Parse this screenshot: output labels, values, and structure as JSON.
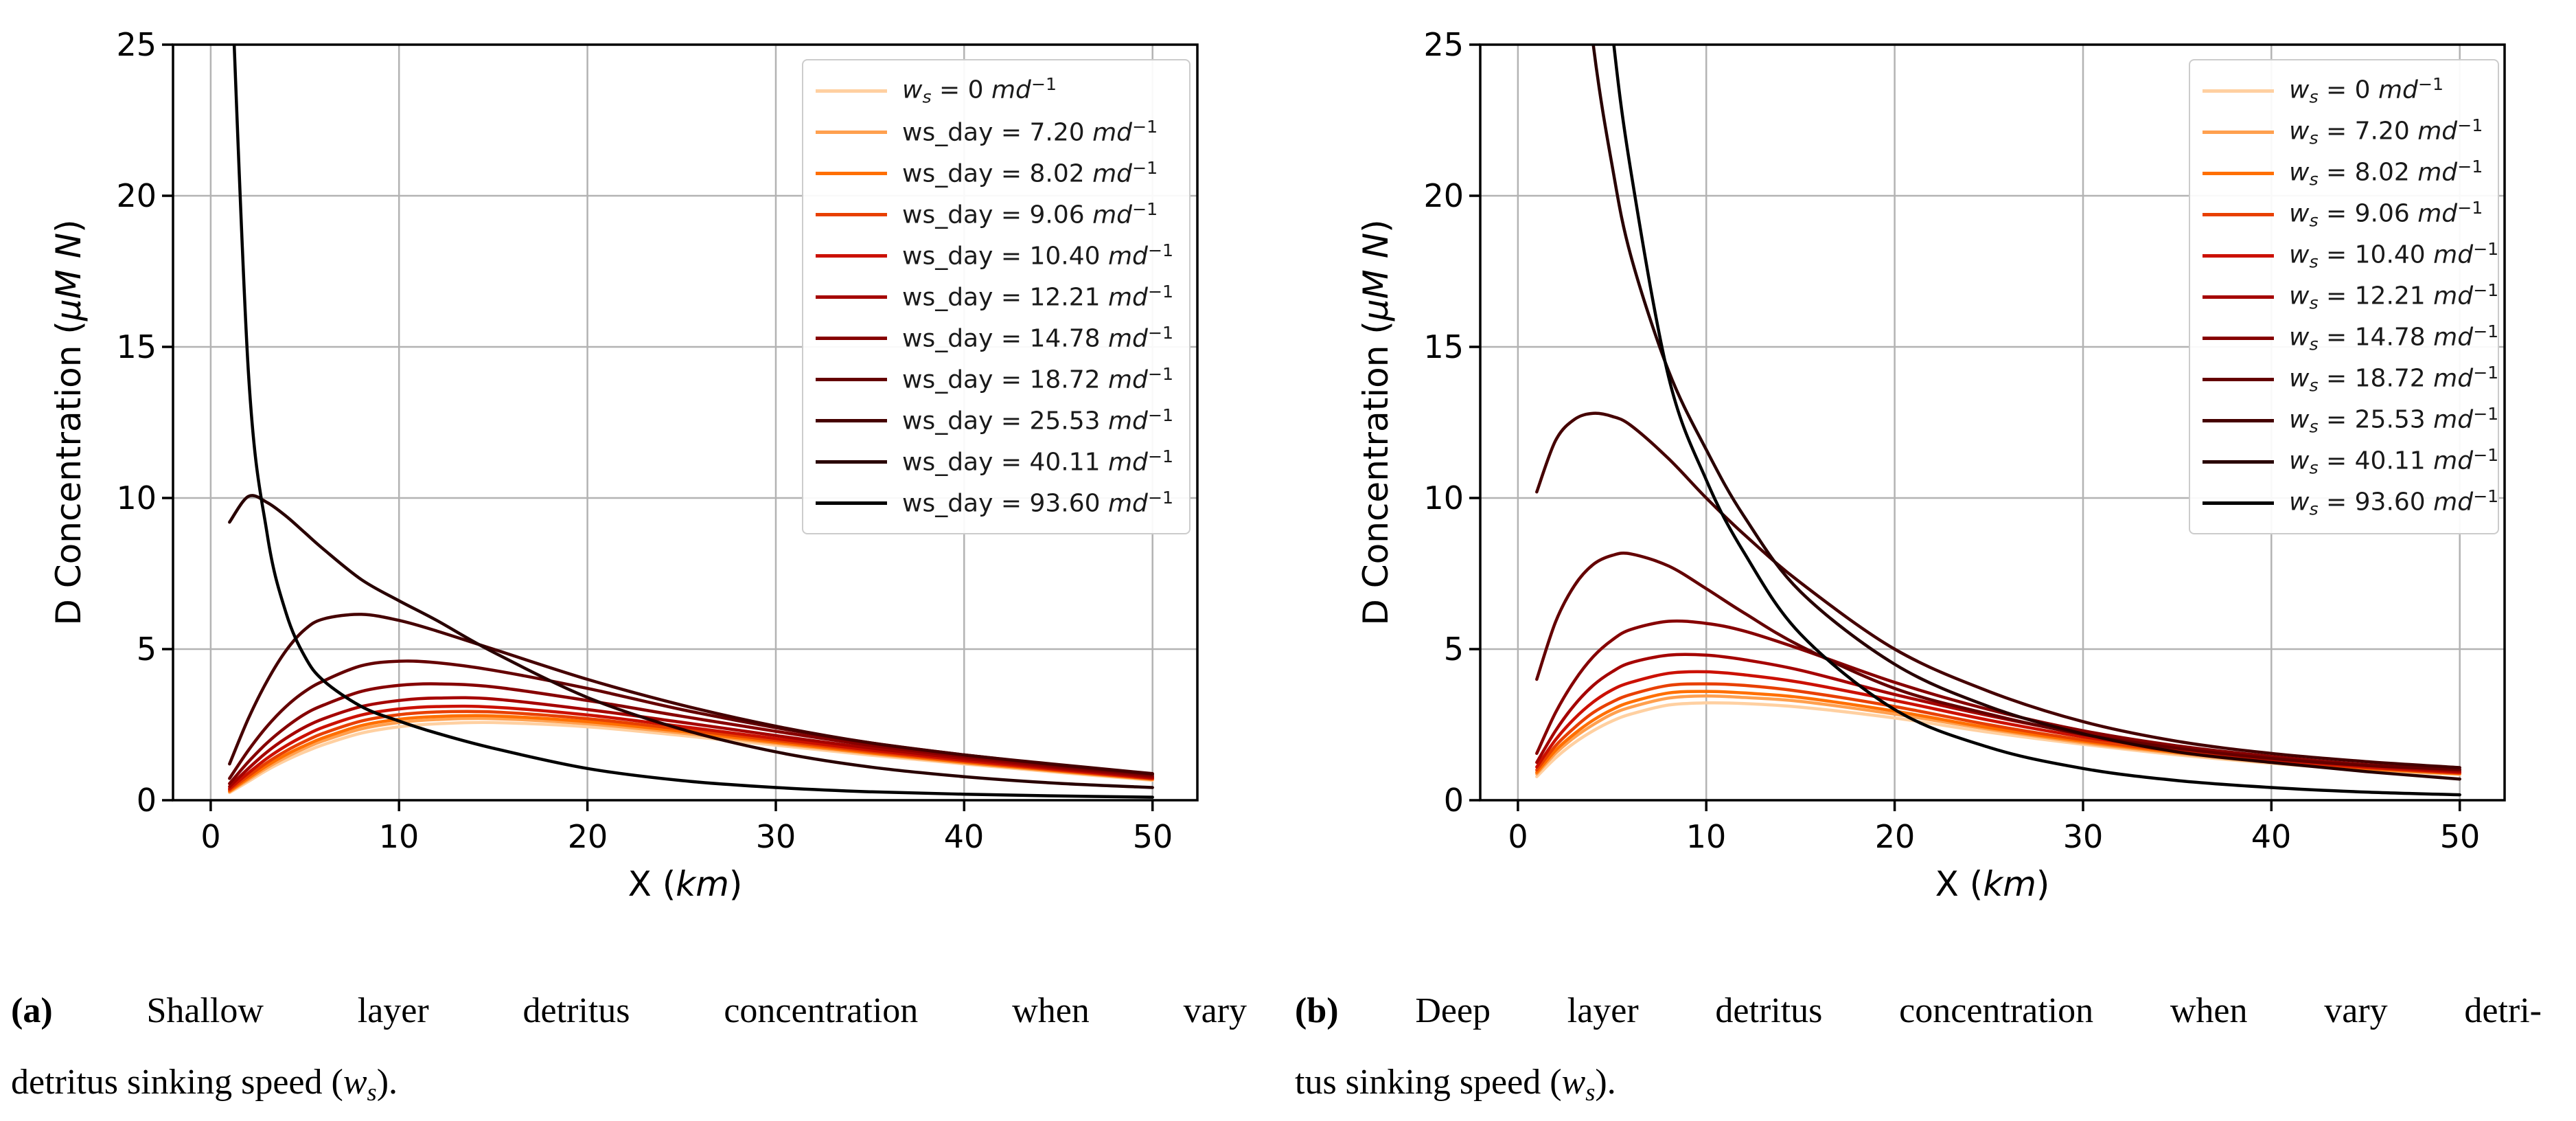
{
  "legend_tokens": {
    "math_var": "w",
    "math_sub": "s",
    "plain_var": "ws_day",
    "eq": "=",
    "unit_base": "md",
    "unit_exp": "−1"
  },
  "caption_math": {
    "open": " (",
    "var": "w",
    "sub": "s",
    "close": ")."
  },
  "captions": [
    {
      "label": "(a)",
      "lines": [
        {
          "text": "Shallow layer detritus concentration when vary",
          "justify": true,
          "math_suffix": false
        },
        {
          "text": "detritus sinking speed",
          "justify": false,
          "math_suffix": true
        }
      ]
    },
    {
      "label": "(b)",
      "lines": [
        {
          "text": "Deep layer detritus concentration when vary detri-",
          "justify": true,
          "math_suffix": false
        },
        {
          "text": "tus sinking speed",
          "justify": false,
          "math_suffix": true
        }
      ]
    }
  ],
  "chart_data": [
    {
      "type": "line",
      "panel": "a",
      "xlabel_parts": {
        "pre": "X (",
        "it": "km",
        "post": ")"
      },
      "ylabel_parts": {
        "pre": "D Concentration (",
        "it": "μM N",
        "post": ")"
      },
      "xlim": [
        -2,
        52.38
      ],
      "ylim": [
        0,
        25
      ],
      "xticks": [
        0,
        10,
        20,
        30,
        40,
        50
      ],
      "yticks": [
        0,
        5,
        10,
        15,
        20,
        25
      ],
      "xtick_labels": [
        "0",
        "10",
        "20",
        "30",
        "40",
        "50"
      ],
      "ytick_labels": [
        "0",
        "5",
        "10",
        "15",
        "20",
        "25"
      ],
      "grid": true,
      "legend_position": "upper right",
      "x": [
        1,
        2,
        3,
        4,
        5,
        6,
        8,
        10,
        12,
        15,
        20,
        25,
        30,
        35,
        40,
        45,
        50
      ],
      "series": [
        {
          "label": "w_s = 0 md^-1",
          "form": "math",
          "value": "0",
          "color": "#ffd0a1",
          "values": [
            0.25,
            0.62,
            1.0,
            1.32,
            1.6,
            1.84,
            2.22,
            2.43,
            2.53,
            2.57,
            2.43,
            2.14,
            1.82,
            1.49,
            1.2,
            0.92,
            0.66
          ]
        },
        {
          "label": "ws_day = 7.20 md^-1",
          "form": "plain",
          "value": "7.20",
          "color": "#ffa04f",
          "values": [
            0.28,
            0.68,
            1.08,
            1.42,
            1.72,
            1.97,
            2.36,
            2.57,
            2.67,
            2.7,
            2.53,
            2.22,
            1.88,
            1.54,
            1.23,
            0.95,
            0.68
          ]
        },
        {
          "label": "ws_day = 8.02 md^-1",
          "form": "plain",
          "value": "8.02",
          "color": "#ff6f00",
          "values": [
            0.3,
            0.73,
            1.15,
            1.51,
            1.81,
            2.07,
            2.47,
            2.68,
            2.77,
            2.79,
            2.6,
            2.28,
            1.92,
            1.57,
            1.26,
            0.97,
            0.7
          ]
        },
        {
          "label": "ws_day = 9.06 md^-1",
          "form": "plain",
          "value": "9.06",
          "color": "#e84000",
          "values": [
            0.34,
            0.8,
            1.25,
            1.63,
            1.95,
            2.22,
            2.62,
            2.83,
            2.92,
            2.92,
            2.7,
            2.35,
            1.98,
            1.61,
            1.29,
            0.99,
            0.71
          ]
        },
        {
          "label": "ws_day = 10.40 md^-1",
          "form": "plain",
          "value": "10.40",
          "color": "#cb1000",
          "values": [
            0.38,
            0.9,
            1.39,
            1.8,
            2.14,
            2.42,
            2.82,
            3.02,
            3.1,
            3.08,
            2.82,
            2.44,
            2.04,
            1.66,
            1.32,
            1.02,
            0.73
          ]
        },
        {
          "label": "ws_day = 12.21 md^-1",
          "form": "plain",
          "value": "12.21",
          "color": "#a50300",
          "values": [
            0.45,
            1.05,
            1.6,
            2.05,
            2.42,
            2.7,
            3.1,
            3.3,
            3.38,
            3.35,
            3.0,
            2.58,
            2.14,
            1.73,
            1.38,
            1.06,
            0.76
          ]
        },
        {
          "label": "ws_day = 14.78 md^-1",
          "form": "plain",
          "value": "14.78",
          "color": "#860000",
          "values": [
            0.55,
            1.27,
            1.9,
            2.42,
            2.85,
            3.15,
            3.6,
            3.8,
            3.85,
            3.75,
            3.3,
            2.78,
            2.28,
            1.82,
            1.44,
            1.1,
            0.8
          ]
        },
        {
          "label": "ws_day = 18.72 md^-1",
          "form": "plain",
          "value": "18.72",
          "color": "#640000",
          "values": [
            0.72,
            1.65,
            2.45,
            3.1,
            3.6,
            3.95,
            4.45,
            4.6,
            4.55,
            4.3,
            3.7,
            3.0,
            2.4,
            1.9,
            1.5,
            1.15,
            0.85
          ]
        },
        {
          "label": "ws_day = 25.53 md^-1",
          "form": "plain",
          "value": "25.53",
          "color": "#450000",
          "values": [
            1.2,
            2.7,
            3.95,
            4.95,
            5.65,
            6.0,
            6.15,
            5.95,
            5.6,
            5.0,
            4.0,
            3.15,
            2.45,
            1.9,
            1.5,
            1.18,
            0.88
          ]
        },
        {
          "label": "ws_day = 40.11 md^-1",
          "form": "plain",
          "value": "40.11",
          "color": "#280000",
          "values": [
            9.2,
            10.05,
            9.85,
            9.4,
            8.85,
            8.3,
            7.3,
            6.6,
            5.95,
            4.9,
            3.4,
            2.35,
            1.6,
            1.1,
            0.78,
            0.56,
            0.42
          ]
        },
        {
          "label": "ws_day = 93.60 md^-1",
          "form": "plain",
          "value": "93.60",
          "color": "#000000",
          "values": [
            29.0,
            14.2,
            8.8,
            6.2,
            4.75,
            3.95,
            3.1,
            2.62,
            2.22,
            1.72,
            1.05,
            0.65,
            0.42,
            0.28,
            0.2,
            0.14,
            0.1
          ]
        }
      ]
    },
    {
      "type": "line",
      "panel": "b",
      "xlabel_parts": {
        "pre": "X (",
        "it": "km",
        "post": ")"
      },
      "ylabel_parts": {
        "pre": "D Concentration (",
        "it": "μM N",
        "post": ")"
      },
      "xlim": [
        -2,
        52.38
      ],
      "ylim": [
        0,
        25
      ],
      "xticks": [
        0,
        10,
        20,
        30,
        40,
        50
      ],
      "yticks": [
        0,
        5,
        10,
        15,
        20,
        25
      ],
      "xtick_labels": [
        "0",
        "10",
        "20",
        "30",
        "40",
        "50"
      ],
      "ytick_labels": [
        "0",
        "5",
        "10",
        "15",
        "20",
        "25"
      ],
      "grid": true,
      "legend_position": "upper right",
      "x": [
        1,
        2,
        3,
        4,
        5,
        6,
        8,
        10,
        12,
        15,
        20,
        25,
        30,
        35,
        40,
        45,
        50
      ],
      "series": [
        {
          "label": "w_s = 0 md^-1",
          "form": "math",
          "value": "0",
          "color": "#ffd0a1",
          "values": [
            0.78,
            1.4,
            1.9,
            2.3,
            2.62,
            2.85,
            3.15,
            3.22,
            3.2,
            3.08,
            2.72,
            2.25,
            1.85,
            1.5,
            1.22,
            1.0,
            0.85
          ]
        },
        {
          "label": "w_s = 7.20 md^-1",
          "form": "math",
          "value": "7.20",
          "color": "#ffa04f",
          "values": [
            0.87,
            1.55,
            2.08,
            2.5,
            2.85,
            3.08,
            3.38,
            3.45,
            3.4,
            3.27,
            2.85,
            2.35,
            1.9,
            1.55,
            1.25,
            1.03,
            0.87
          ]
        },
        {
          "label": "w_s = 8.02 md^-1",
          "form": "math",
          "value": "8.02",
          "color": "#ff6f00",
          "values": [
            0.92,
            1.65,
            2.2,
            2.65,
            3.0,
            3.25,
            3.55,
            3.6,
            3.55,
            3.4,
            2.95,
            2.4,
            1.95,
            1.58,
            1.27,
            1.05,
            0.88
          ]
        },
        {
          "label": "w_s = 9.06 md^-1",
          "form": "math",
          "value": "9.06",
          "color": "#e84000",
          "values": [
            1.0,
            1.8,
            2.4,
            2.9,
            3.25,
            3.5,
            3.8,
            3.85,
            3.8,
            3.6,
            3.1,
            2.5,
            2.0,
            1.62,
            1.3,
            1.07,
            0.9
          ]
        },
        {
          "label": "w_s = 10.40 md^-1",
          "form": "math",
          "value": "10.40",
          "color": "#cb1000",
          "values": [
            1.1,
            2.0,
            2.7,
            3.25,
            3.65,
            3.9,
            4.2,
            4.25,
            4.15,
            3.9,
            3.3,
            2.65,
            2.1,
            1.7,
            1.35,
            1.1,
            0.92
          ]
        },
        {
          "label": "w_s = 12.21 md^-1",
          "form": "math",
          "value": "12.21",
          "color": "#a50300",
          "values": [
            1.25,
            2.3,
            3.15,
            3.8,
            4.25,
            4.55,
            4.8,
            4.8,
            4.65,
            4.3,
            3.5,
            2.8,
            2.2,
            1.75,
            1.4,
            1.15,
            0.95
          ]
        },
        {
          "label": "w_s = 14.78 md^-1",
          "form": "math",
          "value": "14.78",
          "color": "#860000",
          "values": [
            1.55,
            2.9,
            3.95,
            4.75,
            5.3,
            5.65,
            5.92,
            5.85,
            5.6,
            5.0,
            3.9,
            3.0,
            2.3,
            1.8,
            1.45,
            1.18,
            1.0
          ]
        },
        {
          "label": "w_s = 18.72 md^-1",
          "form": "math",
          "value": "18.72",
          "color": "#640000",
          "values": [
            4.0,
            5.9,
            7.1,
            7.8,
            8.1,
            8.15,
            7.75,
            7.0,
            6.2,
            5.1,
            3.7,
            2.85,
            2.18,
            1.72,
            1.38,
            1.15,
            1.02
          ]
        },
        {
          "label": "w_s = 25.53 md^-1",
          "form": "math",
          "value": "25.53",
          "color": "#450000",
          "values": [
            10.2,
            11.9,
            12.6,
            12.8,
            12.7,
            12.4,
            11.3,
            10.0,
            8.8,
            7.2,
            5.0,
            3.6,
            2.6,
            1.95,
            1.55,
            1.28,
            1.08
          ]
        },
        {
          "label": "w_s = 40.11 md^-1",
          "form": "math",
          "value": "40.11",
          "color": "#280000",
          "values": [
            55.0,
            40.0,
            31.0,
            25.0,
            21.0,
            18.0,
            14.2,
            11.6,
            9.4,
            6.9,
            4.5,
            3.1,
            2.2,
            1.6,
            1.25,
            0.95,
            0.7
          ]
        },
        {
          "label": "w_s = 93.60 md^-1",
          "form": "math",
          "value": "93.60",
          "color": "#000000",
          "values": [
            95.0,
            62.0,
            43.0,
            32.0,
            25.5,
            20.8,
            14.0,
            10.6,
            8.2,
            5.5,
            3.0,
            1.75,
            1.05,
            0.65,
            0.42,
            0.27,
            0.18
          ]
        }
      ]
    }
  ]
}
